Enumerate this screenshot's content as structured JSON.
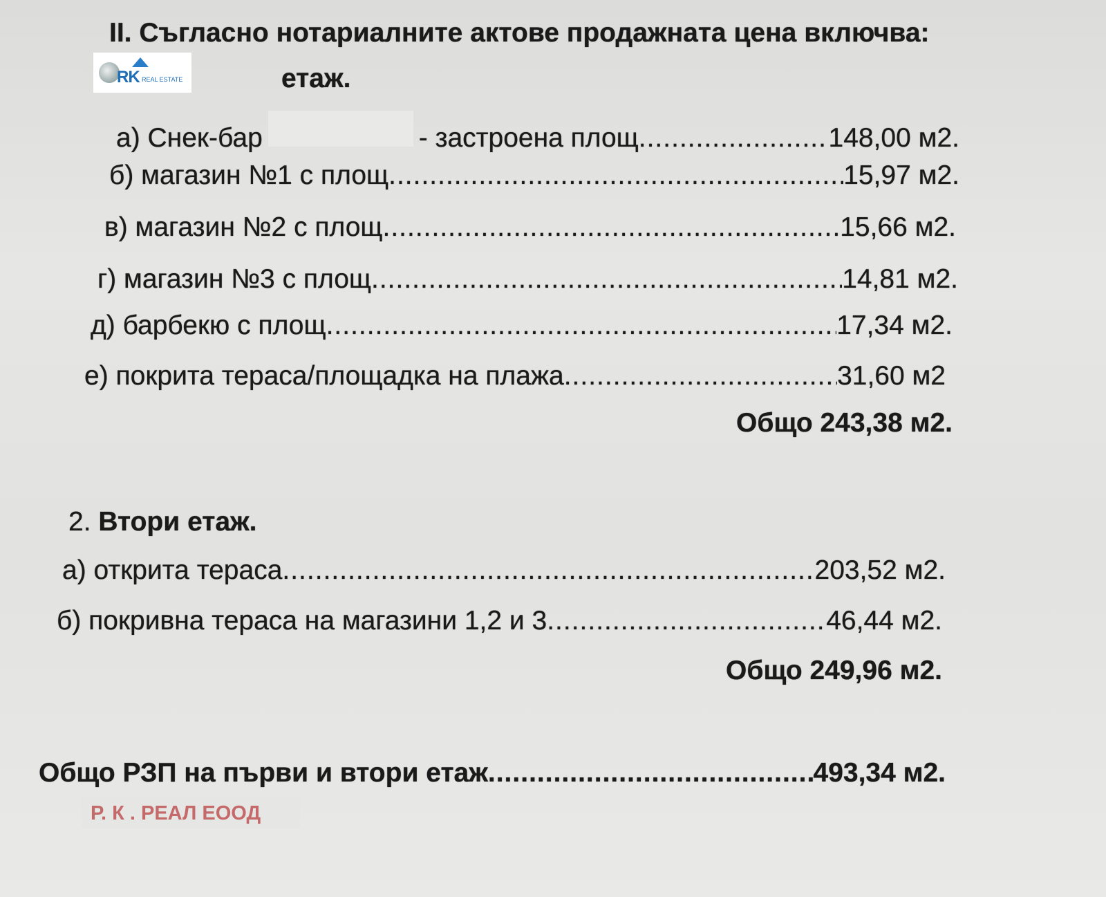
{
  "heading": "II. Съгласно нотариалните актове продажната цена включва:",
  "floor1_label": "етаж.",
  "logo": {
    "text": "RK",
    "subtext": "REAL ESTATE"
  },
  "floor1_items": [
    {
      "label": "а) Снек-бар",
      "label2": "- застроена площ",
      "value": "148,00 м2."
    },
    {
      "label": "б) магазин №1 с площ",
      "value": "15,97 м2."
    },
    {
      "label": "в) магазин №2 с площ",
      "value": "15,66 м2."
    },
    {
      "label": "г) магазин №3 с площ",
      "value": "14,81 м2."
    },
    {
      "label": "д) барбекю с площ",
      "value": "17,34 м2."
    },
    {
      "label": "е) покрита тераса/площадка на плажа",
      "value": "31,60 м2"
    }
  ],
  "floor1_total": "Общо 243,38 м2.",
  "floor2": {
    "number": "2.",
    "title": "Втори етаж."
  },
  "floor2_items": [
    {
      "label": "а) открита тераса",
      "value": "203,52 м2."
    },
    {
      "label": "б) покривна тераса на магазини 1,2 и 3",
      "value": "46,44 м2."
    }
  ],
  "floor2_total": "Общо 249,96 м2.",
  "grand_total": {
    "label": "Общо РЗП на първи и втори етаж",
    "value": "493,34 м2."
  },
  "company": "Р. К . РЕАЛ ЕООД",
  "colors": {
    "company": "#c46a6a",
    "logo": "#1f6fb8"
  }
}
